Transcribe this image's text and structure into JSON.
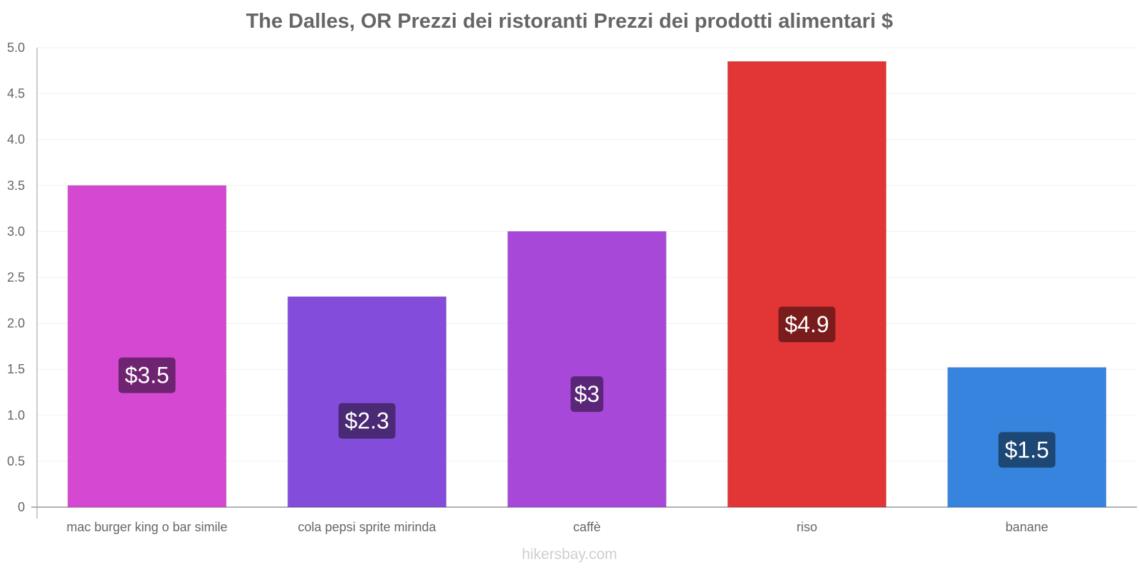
{
  "chart_data": {
    "type": "bar",
    "title": "The Dalles, OR Prezzi dei ristoranti Prezzi dei prodotti alimentari $",
    "xlabel": "",
    "ylabel": "",
    "ylim": [
      0,
      5
    ],
    "yticks": [
      0,
      0.5,
      1.0,
      1.5,
      2.0,
      2.5,
      3.0,
      3.5,
      4.0,
      4.5,
      5.0
    ],
    "ytick_labels": [
      "0",
      "0.5",
      "1.0",
      "1.5",
      "2.0",
      "2.5",
      "3.0",
      "3.5",
      "4.0",
      "4.5",
      "5.0"
    ],
    "categories": [
      "mac burger king o bar simile",
      "cola pepsi sprite mirinda",
      "caffè",
      "riso",
      "banane"
    ],
    "values": [
      3.5,
      2.29,
      3.0,
      4.85,
      1.52
    ],
    "data_labels": [
      "$3.5",
      "$2.3",
      "$3",
      "$4.9",
      "$1.5"
    ],
    "bar_colors": [
      "#d548d2",
      "#844cdb",
      "#a748d9",
      "#e23535",
      "#3784df"
    ],
    "label_box_colors": [
      "#6e2470",
      "#4a2975",
      "#5a2677",
      "#7a1c1c",
      "#1d4775"
    ],
    "grid": true
  },
  "watermark": "hikersbay.com"
}
